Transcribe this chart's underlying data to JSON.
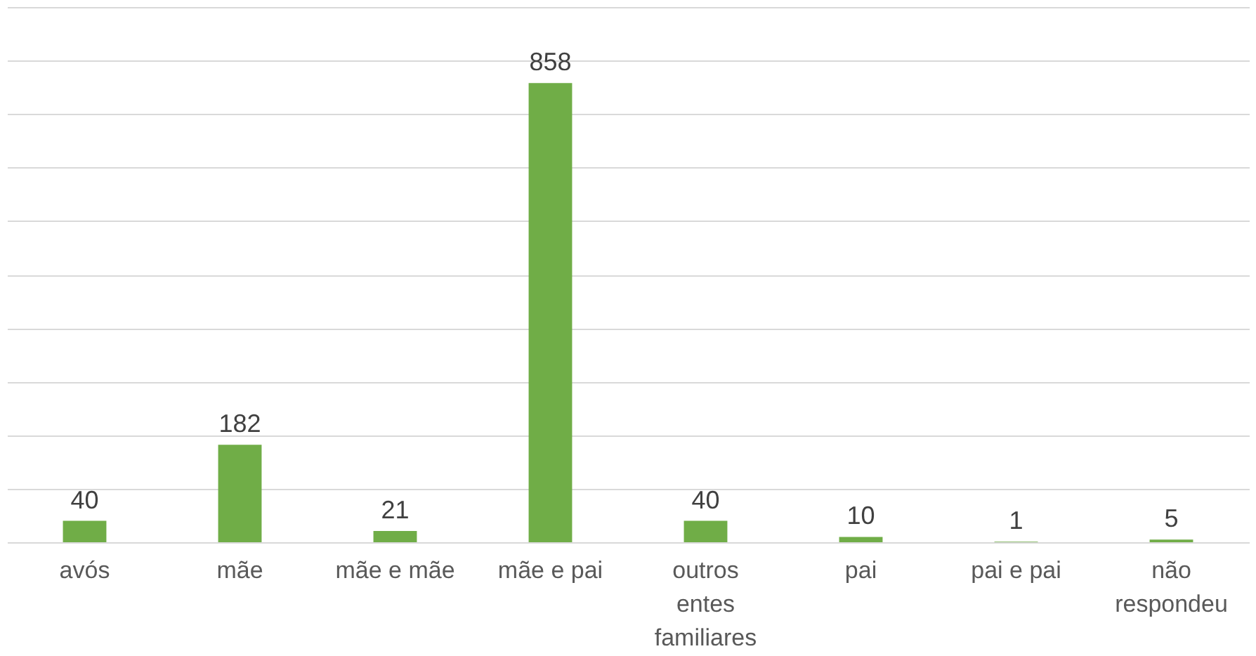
{
  "chart_data": {
    "type": "bar",
    "categories": [
      "avós",
      "mãe",
      "mãe e mãe",
      "mãe e pai",
      "outros entes familiares",
      "pai",
      "pai e pai",
      "não respondeu"
    ],
    "values": [
      40,
      182,
      21,
      858,
      40,
      10,
      1,
      5
    ],
    "color": "#70ad47",
    "data_labels": true,
    "grid": "y",
    "tick_labels": "x",
    "ylim": [
      0,
      1000
    ]
  }
}
